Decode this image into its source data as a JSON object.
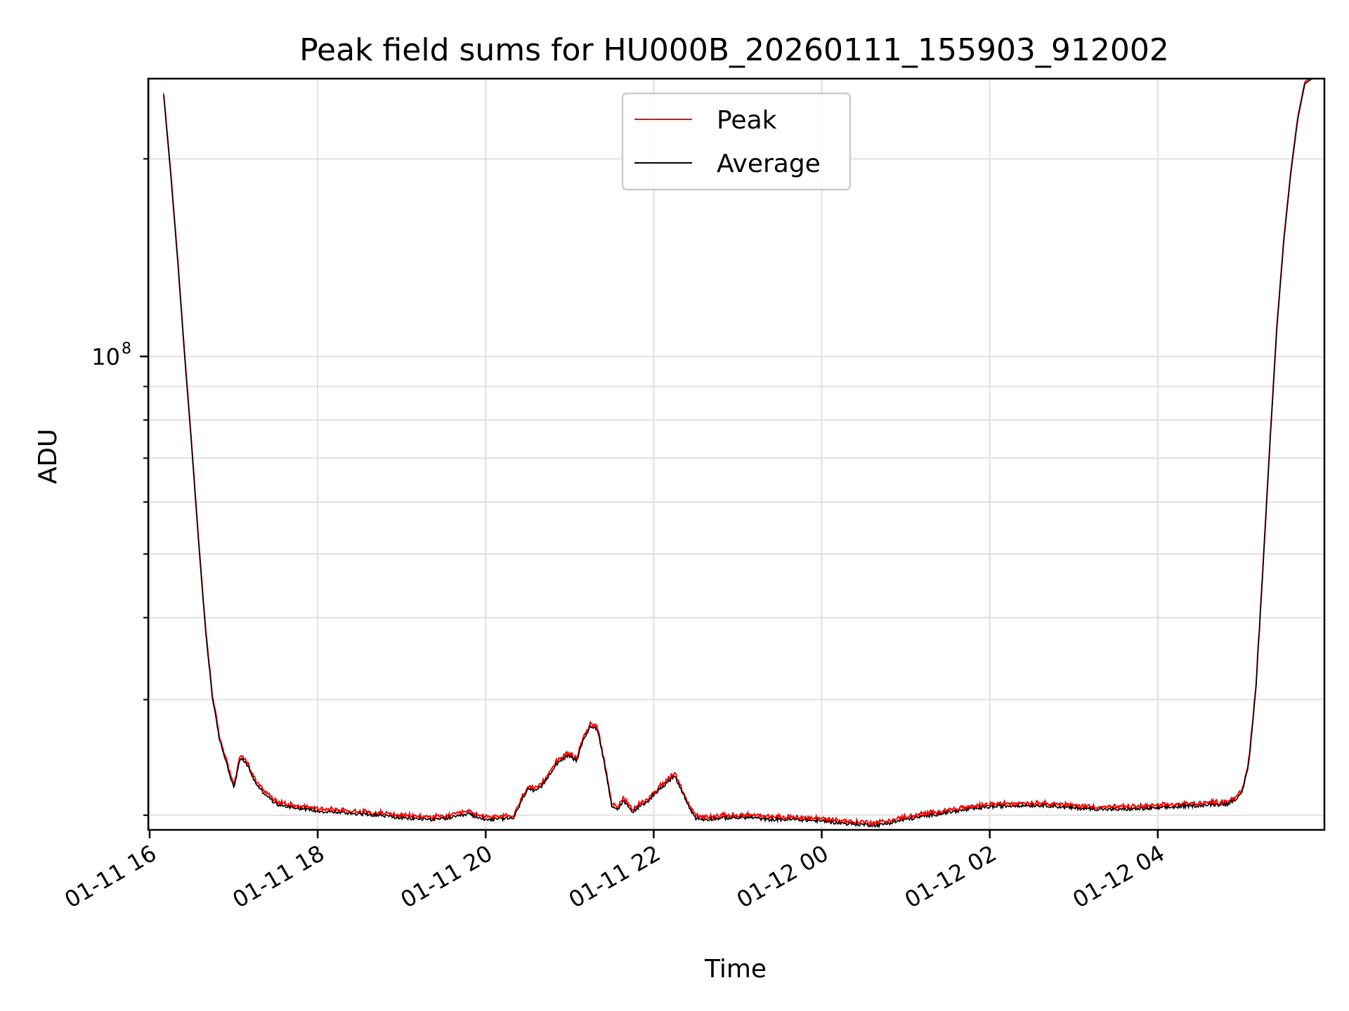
{
  "chart_data": {
    "type": "line",
    "title": "Peak field sums for HU000B_20260111_155903_912002",
    "xlabel": "Time",
    "ylabel": "ADU",
    "y_scale": "log",
    "grid": true,
    "legend_position": "upper-center",
    "x_range": [
      "2026-01-11 15:59",
      "2026-01-12 05:59"
    ],
    "ylim": [
      19000000,
      265000000
    ],
    "x_ticks": [
      {
        "t": "2026-01-11 16:00",
        "label": "01-11 16"
      },
      {
        "t": "2026-01-11 18:00",
        "label": "01-11 18"
      },
      {
        "t": "2026-01-11 20:00",
        "label": "01-11 20"
      },
      {
        "t": "2026-01-11 22:00",
        "label": "01-11 22"
      },
      {
        "t": "2026-01-12 00:00",
        "label": "01-12 00"
      },
      {
        "t": "2026-01-12 02:00",
        "label": "01-12 02"
      },
      {
        "t": "2026-01-12 04:00",
        "label": "01-12 04"
      }
    ],
    "y_major_ticks": [
      {
        "value": 100000000,
        "label": "10",
        "exponent": "8"
      }
    ],
    "colors": {
      "Peak": "#ff0000",
      "Average": "#000000"
    },
    "series": [
      {
        "name": "Peak",
        "color": "#ff0000"
      },
      {
        "name": "Average",
        "color": "#000000"
      }
    ],
    "average_profile": {
      "t": [
        "2026-01-11 16:10",
        "2026-01-11 16:15",
        "2026-01-11 16:20",
        "2026-01-11 16:25",
        "2026-01-11 16:30",
        "2026-01-11 16:35",
        "2026-01-11 16:40",
        "2026-01-11 16:45",
        "2026-01-11 16:50",
        "2026-01-11 16:55",
        "2026-01-11 17:00",
        "2026-01-11 17:05",
        "2026-01-11 17:10",
        "2026-01-11 17:15",
        "2026-01-11 17:20",
        "2026-01-11 17:30",
        "2026-01-11 17:40",
        "2026-01-11 18:00",
        "2026-01-11 18:30",
        "2026-01-11 18:45",
        "2026-01-11 19:00",
        "2026-01-11 19:25",
        "2026-01-11 19:40",
        "2026-01-11 19:48",
        "2026-01-11 19:55",
        "2026-01-11 20:05",
        "2026-01-11 20:20",
        "2026-01-11 20:30",
        "2026-01-11 20:35",
        "2026-01-11 20:40",
        "2026-01-11 20:50",
        "2026-01-11 20:55",
        "2026-01-11 21:00",
        "2026-01-11 21:05",
        "2026-01-11 21:10",
        "2026-01-11 21:15",
        "2026-01-11 21:20",
        "2026-01-11 21:25",
        "2026-01-11 21:30",
        "2026-01-11 21:35",
        "2026-01-11 21:38",
        "2026-01-11 21:42",
        "2026-01-11 21:45",
        "2026-01-11 21:48",
        "2026-01-11 21:55",
        "2026-01-11 22:00",
        "2026-01-11 22:10",
        "2026-01-11 22:15",
        "2026-01-11 22:20",
        "2026-01-11 22:25",
        "2026-01-11 22:30",
        "2026-01-11 22:35",
        "2026-01-11 22:50",
        "2026-01-11 23:10",
        "2026-01-11 23:20",
        "2026-01-11 23:40",
        "2026-01-12 00:00",
        "2026-01-12 00:20",
        "2026-01-12 00:40",
        "2026-01-12 01:00",
        "2026-01-12 01:30",
        "2026-01-12 02:00",
        "2026-01-12 02:20",
        "2026-01-12 02:40",
        "2026-01-12 03:00",
        "2026-01-12 03:30",
        "2026-01-12 04:00",
        "2026-01-12 04:30",
        "2026-01-12 04:50",
        "2026-01-12 05:00",
        "2026-01-12 05:05",
        "2026-01-12 05:10",
        "2026-01-12 05:15",
        "2026-01-12 05:20",
        "2026-01-12 05:25",
        "2026-01-12 05:30",
        "2026-01-12 05:35",
        "2026-01-12 05:40",
        "2026-01-12 05:45",
        "2026-01-12 05:50",
        "2026-01-12 05:55"
      ],
      "v": [
        250000000,
        190000000,
        140000000,
        100000000,
        73000000,
        52000000,
        38000000,
        30000000,
        26000000,
        24000000,
        22000000,
        24500000,
        23800000,
        22500000,
        21800000,
        20800000,
        20600000,
        20300000,
        20100000,
        20000000,
        19800000,
        19700000,
        19900000,
        20100000,
        19800000,
        19700000,
        19800000,
        22000000,
        21700000,
        22100000,
        23900000,
        24400000,
        24600000,
        24200000,
        26200000,
        27300000,
        27000000,
        23800000,
        20700000,
        20400000,
        21000000,
        20600000,
        20200000,
        20500000,
        20900000,
        21500000,
        22500000,
        22900000,
        21800000,
        20600000,
        19800000,
        19700000,
        19800000,
        19850000,
        19700000,
        19700000,
        19600000,
        19400000,
        19300000,
        19700000,
        20200000,
        20600000,
        20700000,
        20700000,
        20500000,
        20400000,
        20500000,
        20700000,
        20800000,
        21500000,
        24000000,
        31000000,
        47000000,
        73000000,
        110000000,
        150000000,
        190000000,
        230000000,
        260000000,
        265000000,
        265000000
      ]
    },
    "peak_offset_ratio": 1.007
  }
}
